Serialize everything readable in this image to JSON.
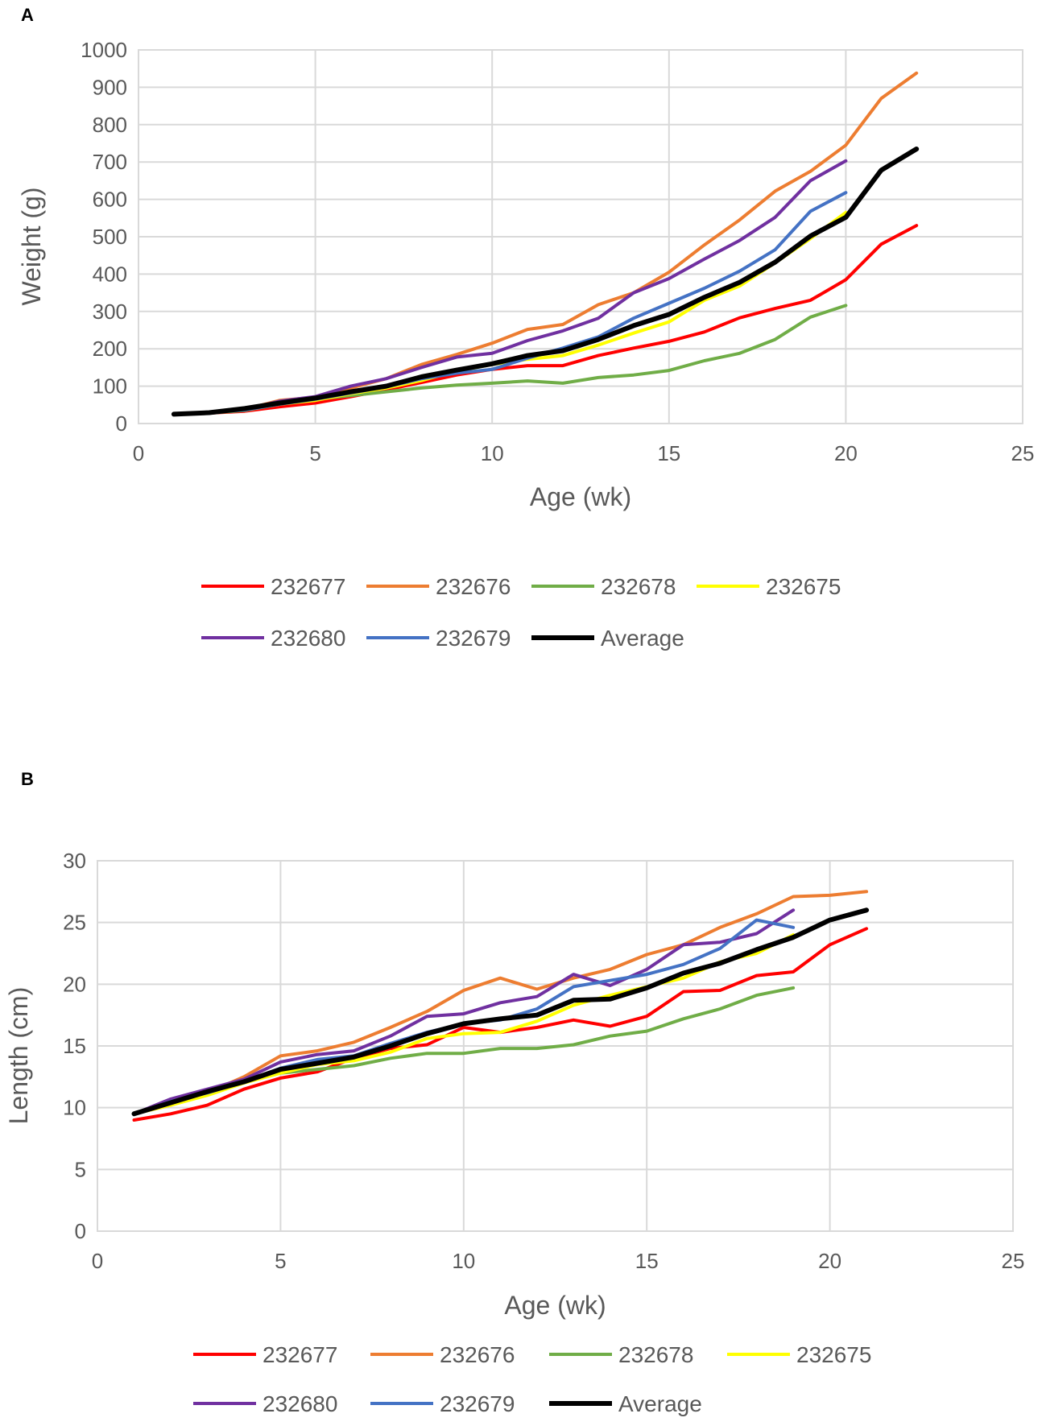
{
  "chart_data": [
    {
      "panel": "A",
      "type": "line",
      "xlabel": "Age (wk)",
      "ylabel": "Weight (g)",
      "xlim": [
        0,
        25
      ],
      "ylim": [
        0,
        1000
      ],
      "xticks": [
        0,
        5,
        10,
        15,
        20,
        25
      ],
      "yticks": [
        0,
        100,
        200,
        300,
        400,
        500,
        600,
        700,
        800,
        900,
        1000
      ],
      "grid": true,
      "legend_position": "bottom",
      "series": [
        {
          "name": "232677",
          "color": "#ff0000",
          "width": 4,
          "x": [
            1,
            2,
            3,
            4,
            5,
            6,
            7,
            8,
            9,
            10,
            11,
            12,
            13,
            14,
            15,
            16,
            17,
            18,
            19,
            20,
            21,
            22
          ],
          "y": [
            25,
            28,
            33,
            45,
            55,
            72,
            90,
            110,
            130,
            145,
            155,
            155,
            182,
            202,
            220,
            245,
            283,
            308,
            330,
            385,
            480,
            530
          ]
        },
        {
          "name": "232676",
          "color": "#ed7d31",
          "width": 4,
          "x": [
            1,
            2,
            3,
            4,
            5,
            6,
            7,
            8,
            9,
            10,
            11,
            12,
            13,
            14,
            15,
            16,
            17,
            18,
            19,
            20,
            21,
            22
          ],
          "y": [
            25,
            30,
            38,
            62,
            70,
            95,
            120,
            158,
            185,
            215,
            252,
            265,
            318,
            350,
            405,
            478,
            545,
            622,
            675,
            745,
            870,
            938
          ]
        },
        {
          "name": "232678",
          "color": "#70ad47",
          "width": 4,
          "x": [
            1,
            2,
            3,
            4,
            5,
            6,
            7,
            8,
            9,
            10,
            11,
            12,
            13,
            14,
            15,
            16,
            17,
            18,
            19,
            20
          ],
          "y": [
            25,
            28,
            35,
            52,
            65,
            75,
            85,
            95,
            103,
            108,
            114,
            108,
            123,
            130,
            142,
            168,
            188,
            225,
            285,
            316
          ]
        },
        {
          "name": "232675",
          "color": "#ffff00",
          "width": 4,
          "x": [
            1,
            2,
            3,
            4,
            5,
            6,
            7,
            8,
            9,
            10,
            11,
            12,
            13,
            14,
            15,
            16,
            17,
            18,
            19,
            20
          ],
          "y": [
            25,
            29,
            36,
            52,
            62,
            80,
            95,
            115,
            140,
            158,
            172,
            182,
            210,
            242,
            272,
            330,
            368,
            430,
            495,
            565
          ]
        },
        {
          "name": "232680",
          "color": "#7030a0",
          "width": 4,
          "x": [
            1,
            2,
            3,
            4,
            5,
            6,
            7,
            8,
            9,
            10,
            11,
            12,
            13,
            14,
            15,
            16,
            17,
            18,
            19,
            20
          ],
          "y": [
            25,
            30,
            38,
            60,
            72,
            100,
            120,
            150,
            178,
            188,
            222,
            248,
            282,
            350,
            388,
            440,
            490,
            552,
            650,
            703
          ]
        },
        {
          "name": "232679",
          "color": "#4472c4",
          "width": 4,
          "x": [
            1,
            2,
            3,
            4,
            5,
            6,
            7,
            8,
            9,
            10,
            11,
            12,
            13,
            14,
            15,
            16,
            17,
            18,
            19,
            20
          ],
          "y": [
            25,
            29,
            36,
            52,
            65,
            82,
            98,
            120,
            135,
            145,
            175,
            202,
            232,
            282,
            322,
            362,
            408,
            465,
            568,
            618
          ]
        },
        {
          "name": "Average",
          "color": "#000000",
          "width": 6,
          "x": [
            1,
            2,
            3,
            4,
            5,
            6,
            7,
            8,
            9,
            10,
            11,
            12,
            13,
            14,
            15,
            16,
            17,
            18,
            19,
            20,
            21,
            22
          ],
          "y": [
            25,
            29,
            40,
            55,
            68,
            85,
            100,
            125,
            143,
            160,
            182,
            195,
            225,
            262,
            292,
            338,
            378,
            432,
            502,
            552,
            678,
            735
          ]
        }
      ]
    },
    {
      "panel": "B",
      "type": "line",
      "xlabel": "Age (wk)",
      "ylabel": "Length (cm)",
      "xlim": [
        0,
        25
      ],
      "ylim": [
        0,
        30
      ],
      "xticks": [
        0,
        5,
        10,
        15,
        20,
        25
      ],
      "yticks": [
        0,
        5,
        10,
        15,
        20,
        25,
        30
      ],
      "grid": true,
      "legend_position": "bottom",
      "series": [
        {
          "name": "232677",
          "color": "#ff0000",
          "width": 4,
          "x": [
            1,
            2,
            3,
            4,
            5,
            6,
            7,
            8,
            9,
            10,
            11,
            12,
            13,
            14,
            15,
            16,
            17,
            18,
            19,
            20,
            21
          ],
          "y": [
            9.0,
            9.5,
            10.2,
            11.5,
            12.4,
            12.9,
            14.0,
            14.8,
            15.1,
            16.5,
            16.1,
            16.5,
            17.1,
            16.6,
            17.4,
            19.4,
            19.5,
            20.7,
            21.0,
            23.2,
            24.5
          ]
        },
        {
          "name": "232676",
          "color": "#ed7d31",
          "width": 4,
          "x": [
            1,
            2,
            3,
            4,
            5,
            6,
            7,
            8,
            9,
            10,
            11,
            12,
            13,
            14,
            15,
            16,
            17,
            18,
            19,
            20,
            21
          ],
          "y": [
            9.5,
            10.2,
            11.2,
            12.5,
            14.2,
            14.6,
            15.3,
            16.5,
            17.8,
            19.5,
            20.5,
            19.6,
            20.5,
            21.2,
            22.4,
            23.2,
            24.6,
            25.7,
            27.1,
            27.2,
            27.5
          ]
        },
        {
          "name": "232678",
          "color": "#70ad47",
          "width": 4,
          "x": [
            1,
            2,
            3,
            4,
            5,
            6,
            7,
            8,
            9,
            10,
            11,
            12,
            13,
            14,
            15,
            16,
            17,
            18,
            19
          ],
          "y": [
            9.5,
            10.5,
            11.2,
            12.2,
            12.8,
            13.1,
            13.4,
            14.0,
            14.4,
            14.4,
            14.8,
            14.8,
            15.1,
            15.8,
            16.2,
            17.2,
            18.0,
            19.1,
            19.7
          ]
        },
        {
          "name": "232675",
          "color": "#ffff00",
          "width": 4,
          "x": [
            1,
            2,
            3,
            4,
            5,
            6,
            7,
            8,
            9,
            10,
            11,
            12,
            13,
            14,
            15,
            16,
            17,
            18,
            19
          ],
          "y": [
            9.5,
            10.2,
            11.0,
            12.0,
            12.8,
            13.5,
            13.8,
            14.5,
            15.6,
            16.0,
            16.1,
            17.0,
            18.3,
            19.1,
            19.8,
            20.5,
            21.8,
            22.5,
            24.0
          ]
        },
        {
          "name": "232680",
          "color": "#7030a0",
          "width": 4,
          "x": [
            1,
            2,
            3,
            4,
            5,
            6,
            7,
            8,
            9,
            10,
            11,
            12,
            13,
            14,
            15,
            16,
            17,
            18,
            19
          ],
          "y": [
            9.5,
            10.7,
            11.5,
            12.3,
            13.7,
            14.3,
            14.6,
            15.8,
            17.4,
            17.6,
            18.5,
            19.0,
            20.8,
            19.9,
            21.2,
            23.2,
            23.4,
            24.1,
            26.0
          ]
        },
        {
          "name": "232679",
          "color": "#4472c4",
          "width": 4,
          "x": [
            1,
            2,
            3,
            4,
            5,
            6,
            7,
            8,
            9,
            10,
            11,
            12,
            13,
            14,
            15,
            16,
            17,
            18,
            19
          ],
          "y": [
            9.5,
            10.5,
            11.2,
            12.1,
            13.2,
            13.9,
            14.2,
            15.2,
            16.1,
            16.8,
            17.1,
            18.0,
            19.8,
            20.3,
            20.8,
            21.6,
            22.9,
            25.2,
            24.6
          ]
        },
        {
          "name": "Average",
          "color": "#000000",
          "width": 6,
          "x": [
            1,
            2,
            3,
            4,
            5,
            6,
            7,
            8,
            9,
            10,
            11,
            12,
            13,
            14,
            15,
            16,
            17,
            18,
            19,
            20,
            21
          ],
          "y": [
            9.5,
            10.4,
            11.3,
            12.1,
            13.1,
            13.6,
            14.1,
            15.0,
            16.0,
            16.8,
            17.2,
            17.5,
            18.7,
            18.8,
            19.7,
            20.9,
            21.7,
            22.8,
            23.8,
            25.2,
            26.0
          ]
        }
      ]
    }
  ]
}
